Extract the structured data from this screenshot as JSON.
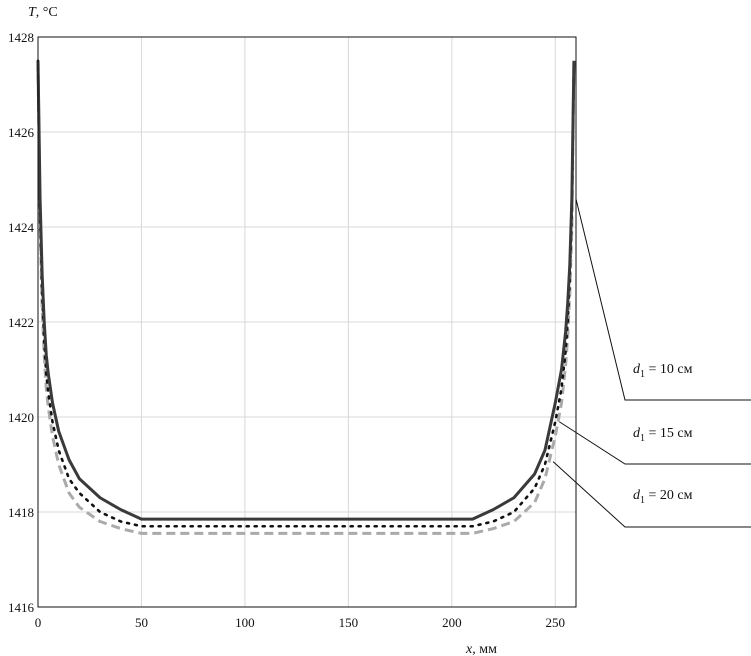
{
  "chart_data": {
    "type": "line",
    "ylabel_var": "T",
    "ylabel_unit": ", °C",
    "xlabel_var": "x",
    "xlabel_unit": ", мм",
    "xlim": [
      0,
      260
    ],
    "ylim": [
      1416,
      1428
    ],
    "xticks": [
      0,
      50,
      100,
      150,
      200,
      250
    ],
    "yticks": [
      1416,
      1418,
      1420,
      1422,
      1424,
      1426,
      1428
    ],
    "grid": true,
    "series": [
      {
        "name": "d1 = 10 см",
        "label_var": "d",
        "label_sub": "1",
        "label_rest": " = 10 см",
        "style": "solid",
        "color": "#3a3a3a",
        "x": [
          0,
          1,
          2,
          3,
          4,
          5,
          7,
          10,
          15,
          20,
          30,
          40,
          50,
          210,
          220,
          230,
          240,
          245,
          250,
          253,
          255,
          256,
          257,
          258,
          259
        ],
        "y": [
          1427.5,
          1424.6,
          1423.0,
          1422.0,
          1421.3,
          1420.9,
          1420.3,
          1419.7,
          1419.1,
          1418.7,
          1418.3,
          1418.05,
          1417.85,
          1417.85,
          1418.05,
          1418.3,
          1418.8,
          1419.3,
          1420.3,
          1421.0,
          1421.8,
          1422.4,
          1423.2,
          1424.6,
          1427.5
        ]
      },
      {
        "name": "d1 = 15 см",
        "label_var": "d",
        "label_sub": "1",
        "label_rest": " = 15 см",
        "style": "dotted",
        "color": "#111111",
        "x": [
          0,
          1,
          2,
          3,
          4,
          5,
          7,
          10,
          15,
          20,
          30,
          40,
          50,
          210,
          220,
          230,
          240,
          245,
          250,
          253,
          255,
          256,
          257,
          258,
          259
        ],
        "y": [
          1427.5,
          1424.3,
          1422.6,
          1421.6,
          1420.9,
          1420.5,
          1419.9,
          1419.3,
          1418.7,
          1418.4,
          1418.0,
          1417.8,
          1417.7,
          1417.7,
          1417.8,
          1418.0,
          1418.5,
          1419.0,
          1419.9,
          1420.6,
          1421.4,
          1422.0,
          1422.9,
          1424.3,
          1427.5
        ]
      },
      {
        "name": "d1 = 20 см",
        "label_var": "d",
        "label_sub": "1",
        "label_rest": " = 20 см",
        "style": "dashed",
        "color": "#aaaaaa",
        "x": [
          0,
          1,
          2,
          3,
          4,
          5,
          7,
          10,
          15,
          20,
          30,
          40,
          50,
          210,
          220,
          230,
          240,
          245,
          250,
          253,
          255,
          256,
          257,
          258,
          259
        ],
        "y": [
          1427.5,
          1424.0,
          1422.3,
          1421.3,
          1420.6,
          1420.2,
          1419.6,
          1419.0,
          1418.4,
          1418.1,
          1417.8,
          1417.65,
          1417.55,
          1417.55,
          1417.65,
          1417.8,
          1418.2,
          1418.7,
          1419.6,
          1420.3,
          1421.1,
          1421.7,
          1422.6,
          1424.0,
          1427.5
        ]
      }
    ],
    "annotation_x": [
      258,
      250,
      247
    ]
  }
}
